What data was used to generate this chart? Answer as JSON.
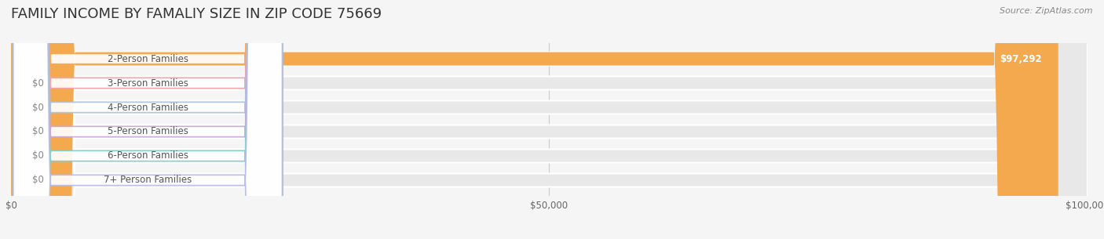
{
  "title": "FAMILY INCOME BY FAMALIY SIZE IN ZIP CODE 75669",
  "source": "Source: ZipAtlas.com",
  "categories": [
    "2-Person Families",
    "3-Person Families",
    "4-Person Families",
    "5-Person Families",
    "6-Person Families",
    "7+ Person Families"
  ],
  "values": [
    97292,
    0,
    0,
    0,
    0,
    0
  ],
  "bar_colors": [
    "#f5a94e",
    "#f2a0a8",
    "#a8c4e0",
    "#c9a8d4",
    "#7ececa",
    "#b8bce8"
  ],
  "label_colors": [
    "#f5a94e",
    "#f2a0a8",
    "#a8c4e0",
    "#c9a8d4",
    "#7ececa",
    "#b8bce8"
  ],
  "xlim": [
    0,
    100000
  ],
  "xticks": [
    0,
    50000,
    100000
  ],
  "xtick_labels": [
    "$0",
    "$50,000",
    "$100,000"
  ],
  "bar_height": 0.55,
  "background_color": "#f5f5f5",
  "bar_background_color": "#e8e8e8",
  "title_fontsize": 13,
  "label_fontsize": 8.5,
  "value_label_97292": "$97,292",
  "value_label_0": "$0"
}
